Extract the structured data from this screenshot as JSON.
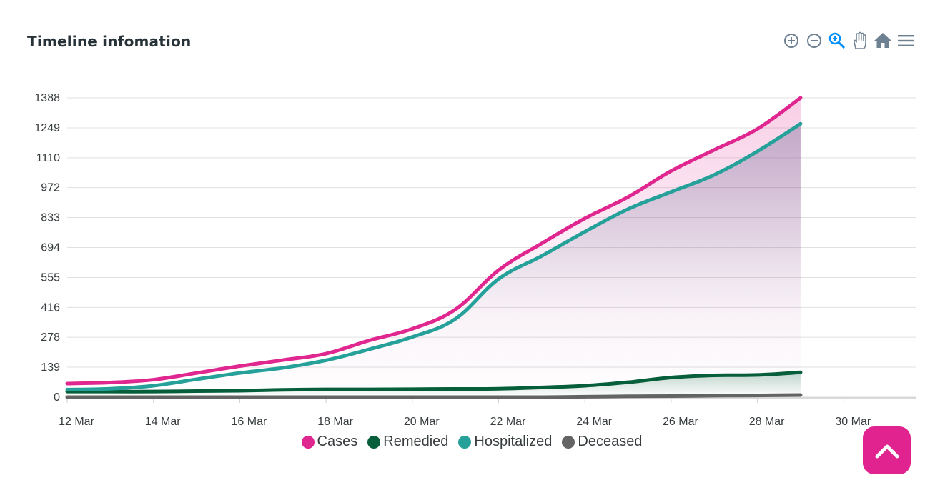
{
  "header": {
    "title": "Timeline infomation"
  },
  "toolbar": {
    "icons": [
      "zoom-in-icon",
      "zoom-out-icon",
      "magnifier-icon",
      "pan-hand-icon",
      "home-icon",
      "menu-icon"
    ],
    "icon_color": "#6e8192",
    "active_color": "#008ffb"
  },
  "chart_data": {
    "type": "area",
    "title": "Timeline infomation",
    "xlabel": "",
    "ylabel": "",
    "x": [
      "12 Mar",
      "13 Mar",
      "14 Mar",
      "15 Mar",
      "16 Mar",
      "17 Mar",
      "18 Mar",
      "19 Mar",
      "20 Mar",
      "21 Mar",
      "22 Mar",
      "23 Mar",
      "24 Mar",
      "25 Mar",
      "26 Mar",
      "27 Mar",
      "28 Mar",
      "29 Mar"
    ],
    "x_tick_labels": [
      "12 Mar",
      "14 Mar",
      "16 Mar",
      "18 Mar",
      "20 Mar",
      "22 Mar",
      "24 Mar",
      "26 Mar",
      "28 Mar",
      "30 Mar"
    ],
    "xlim": [
      "12 Mar",
      "31 Mar"
    ],
    "y_tick_labels": [
      "0",
      "139",
      "278",
      "416",
      "555",
      "694",
      "833",
      "972",
      "1110",
      "1249",
      "1388"
    ],
    "ylim": [
      0,
      1388
    ],
    "grid": true,
    "legend": "bottom-center",
    "series": [
      {
        "name": "Cases",
        "color": "#e0268f",
        "values": [
          63,
          68,
          81,
          112,
          144,
          172,
          202,
          263,
          317,
          407,
          589,
          713,
          829,
          928,
          1049,
          1147,
          1244,
          1388
        ]
      },
      {
        "name": "Remedied",
        "color": "#075e3a",
        "values": [
          26,
          26,
          26,
          28,
          30,
          34,
          36,
          36,
          37,
          38,
          39,
          45,
          53,
          69,
          91,
          101,
          103,
          115
        ]
      },
      {
        "name": "Hospitalized",
        "color": "#25a19a",
        "values": [
          35,
          39,
          53,
          83,
          112,
          136,
          171,
          222,
          279,
          363,
          548,
          655,
          767,
          872,
          952,
          1031,
          1140,
          1268
        ]
      },
      {
        "name": "Deceased",
        "color": "#646464",
        "values": [
          0,
          0,
          0,
          0,
          0,
          0,
          0,
          0,
          0,
          0,
          0,
          0,
          2,
          4,
          5,
          7,
          8,
          10
        ]
      }
    ]
  },
  "scroll_top": {
    "icon": "chevron-up-icon",
    "color": "#e0238f"
  }
}
